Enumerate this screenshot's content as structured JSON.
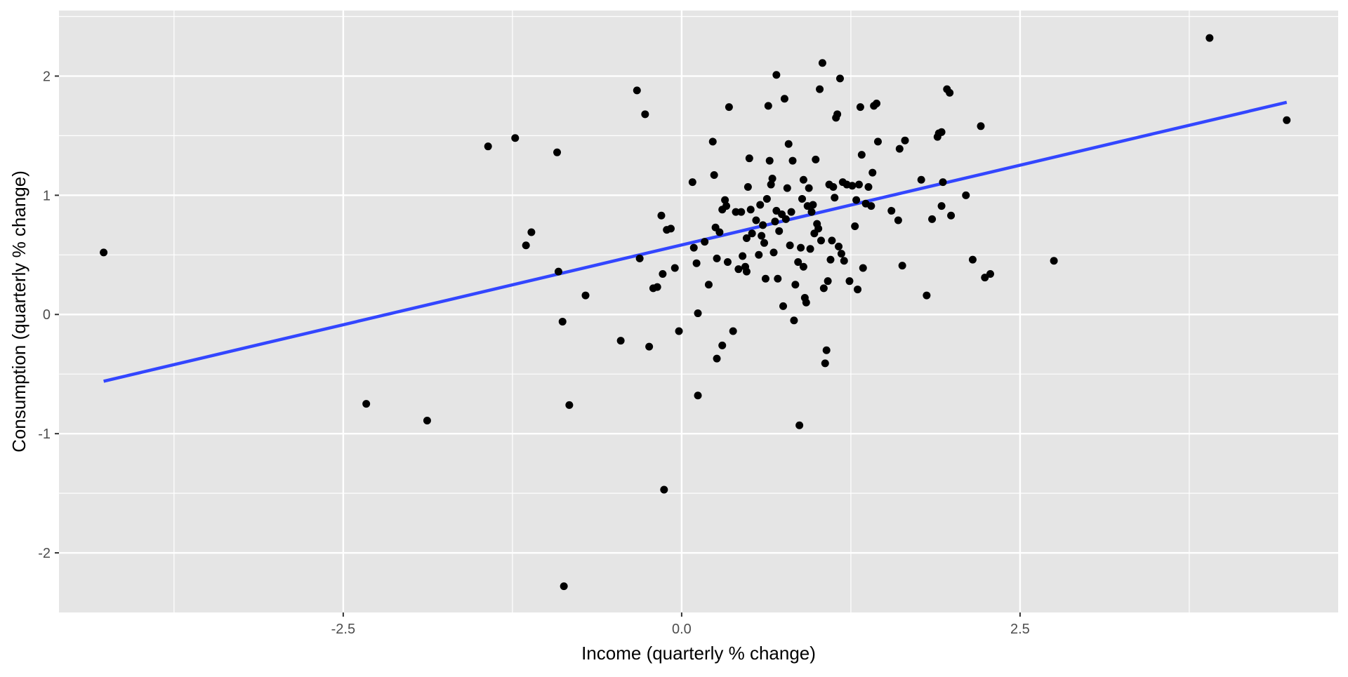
{
  "chart_data": {
    "type": "scatter",
    "xlabel": "Income (quarterly % change)",
    "ylabel": "Consumption (quarterly % change)",
    "xlim": [
      -4.6,
      4.85
    ],
    "ylim": [
      -2.5,
      2.55
    ],
    "x_ticks": [
      -2.5,
      0.0,
      2.5
    ],
    "x_tick_labels": [
      "-2.5",
      "0.0",
      "2.5"
    ],
    "y_ticks": [
      -2,
      -1,
      0,
      1,
      2
    ],
    "y_tick_labels": [
      "-2",
      "-1",
      "0",
      "1",
      "2"
    ],
    "grid": true,
    "panel_color": "#e5e5e5",
    "grid_color": "#ffffff",
    "point_color": "#000000",
    "points": [
      [
        -4.27,
        0.52
      ],
      [
        -2.33,
        -0.75
      ],
      [
        -1.88,
        -0.89
      ],
      [
        -1.43,
        1.41
      ],
      [
        -1.23,
        1.48
      ],
      [
        -1.15,
        0.58
      ],
      [
        -1.11,
        0.69
      ],
      [
        -0.92,
        1.36
      ],
      [
        -0.91,
        0.36
      ],
      [
        -0.88,
        -0.06
      ],
      [
        -0.87,
        -2.28
      ],
      [
        -0.83,
        -0.76
      ],
      [
        -0.71,
        0.16
      ],
      [
        -0.45,
        -0.22
      ],
      [
        -0.33,
        1.88
      ],
      [
        -0.31,
        0.47
      ],
      [
        -0.27,
        1.68
      ],
      [
        -0.24,
        -0.27
      ],
      [
        -0.21,
        0.22
      ],
      [
        -0.18,
        0.23
      ],
      [
        -0.15,
        0.83
      ],
      [
        -0.14,
        0.34
      ],
      [
        -0.13,
        -1.47
      ],
      [
        -0.11,
        0.71
      ],
      [
        -0.08,
        0.72
      ],
      [
        -0.05,
        0.39
      ],
      [
        -0.02,
        -0.14
      ],
      [
        0.08,
        1.11
      ],
      [
        0.09,
        0.56
      ],
      [
        0.11,
        0.43
      ],
      [
        0.12,
        -0.68
      ],
      [
        0.12,
        0.01
      ],
      [
        0.17,
        0.61
      ],
      [
        0.2,
        0.25
      ],
      [
        0.23,
        1.45
      ],
      [
        0.24,
        1.17
      ],
      [
        0.25,
        0.73
      ],
      [
        0.26,
        0.47
      ],
      [
        0.26,
        -0.37
      ],
      [
        0.28,
        0.69
      ],
      [
        0.3,
        0.88
      ],
      [
        0.3,
        -0.26
      ],
      [
        0.32,
        0.96
      ],
      [
        0.33,
        0.91
      ],
      [
        0.34,
        0.44
      ],
      [
        0.35,
        1.74
      ],
      [
        0.38,
        -0.14
      ],
      [
        0.4,
        0.86
      ],
      [
        0.42,
        0.38
      ],
      [
        0.44,
        0.86
      ],
      [
        0.45,
        0.49
      ],
      [
        0.47,
        0.4
      ],
      [
        0.48,
        0.36
      ],
      [
        0.48,
        0.64
      ],
      [
        0.49,
        1.07
      ],
      [
        0.5,
        1.31
      ],
      [
        0.51,
        0.88
      ],
      [
        0.52,
        0.68
      ],
      [
        0.55,
        0.79
      ],
      [
        0.57,
        0.5
      ],
      [
        0.58,
        0.92
      ],
      [
        0.59,
        0.66
      ],
      [
        0.6,
        0.75
      ],
      [
        0.61,
        0.6
      ],
      [
        0.62,
        0.3
      ],
      [
        0.63,
        0.97
      ],
      [
        0.64,
        1.75
      ],
      [
        0.65,
        1.29
      ],
      [
        0.66,
        1.09
      ],
      [
        0.67,
        1.14
      ],
      [
        0.68,
        0.52
      ],
      [
        0.69,
        0.78
      ],
      [
        0.7,
        2.01
      ],
      [
        0.7,
        0.87
      ],
      [
        0.71,
        0.3
      ],
      [
        0.72,
        0.7
      ],
      [
        0.74,
        0.84
      ],
      [
        0.75,
        0.07
      ],
      [
        0.76,
        1.81
      ],
      [
        0.77,
        0.8
      ],
      [
        0.78,
        1.06
      ],
      [
        0.79,
        1.43
      ],
      [
        0.8,
        0.58
      ],
      [
        0.81,
        0.86
      ],
      [
        0.82,
        1.29
      ],
      [
        0.83,
        -0.05
      ],
      [
        0.84,
        0.25
      ],
      [
        0.86,
        0.44
      ],
      [
        0.87,
        -0.93
      ],
      [
        0.88,
        0.56
      ],
      [
        0.89,
        0.97
      ],
      [
        0.9,
        1.13
      ],
      [
        0.9,
        0.4
      ],
      [
        0.91,
        0.14
      ],
      [
        0.92,
        0.1
      ],
      [
        0.93,
        0.91
      ],
      [
        0.94,
        1.06
      ],
      [
        0.95,
        0.55
      ],
      [
        0.96,
        0.86
      ],
      [
        0.97,
        0.92
      ],
      [
        0.98,
        0.68
      ],
      [
        0.99,
        1.3
      ],
      [
        1.0,
        0.76
      ],
      [
        1.01,
        0.72
      ],
      [
        1.02,
        1.89
      ],
      [
        1.03,
        0.62
      ],
      [
        1.04,
        2.11
      ],
      [
        1.05,
        0.22
      ],
      [
        1.06,
        -0.41
      ],
      [
        1.07,
        -0.3
      ],
      [
        1.08,
        0.28
      ],
      [
        1.09,
        1.09
      ],
      [
        1.1,
        0.46
      ],
      [
        1.11,
        0.62
      ],
      [
        1.12,
        1.07
      ],
      [
        1.13,
        0.98
      ],
      [
        1.14,
        1.65
      ],
      [
        1.15,
        1.68
      ],
      [
        1.16,
        0.57
      ],
      [
        1.17,
        1.98
      ],
      [
        1.18,
        0.51
      ],
      [
        1.19,
        1.11
      ],
      [
        1.2,
        0.45
      ],
      [
        1.22,
        1.09
      ],
      [
        1.24,
        0.28
      ],
      [
        1.26,
        1.08
      ],
      [
        1.28,
        0.74
      ],
      [
        1.29,
        0.96
      ],
      [
        1.3,
        0.21
      ],
      [
        1.31,
        1.09
      ],
      [
        1.32,
        1.74
      ],
      [
        1.33,
        1.34
      ],
      [
        1.34,
        0.39
      ],
      [
        1.36,
        0.93
      ],
      [
        1.38,
        1.07
      ],
      [
        1.4,
        0.91
      ],
      [
        1.41,
        1.19
      ],
      [
        1.42,
        1.75
      ],
      [
        1.44,
        1.77
      ],
      [
        1.45,
        1.45
      ],
      [
        1.55,
        0.87
      ],
      [
        1.6,
        0.79
      ],
      [
        1.61,
        1.39
      ],
      [
        1.63,
        0.41
      ],
      [
        1.65,
        1.46
      ],
      [
        1.77,
        1.13
      ],
      [
        1.81,
        0.16
      ],
      [
        1.85,
        0.8
      ],
      [
        1.89,
        1.49
      ],
      [
        1.9,
        1.52
      ],
      [
        1.92,
        1.53
      ],
      [
        1.92,
        0.91
      ],
      [
        1.93,
        1.11
      ],
      [
        1.96,
        1.89
      ],
      [
        1.98,
        1.86
      ],
      [
        1.99,
        0.83
      ],
      [
        2.1,
        1.0
      ],
      [
        2.15,
        0.46
      ],
      [
        2.21,
        1.58
      ],
      [
        2.24,
        0.31
      ],
      [
        2.28,
        0.34
      ],
      [
        2.75,
        0.45
      ],
      [
        3.9,
        2.32
      ],
      [
        4.47,
        1.63
      ]
    ],
    "trend_line": {
      "color": "#3346ff",
      "x": [
        -4.27,
        4.47
      ],
      "y": [
        -0.56,
        1.78
      ]
    }
  }
}
